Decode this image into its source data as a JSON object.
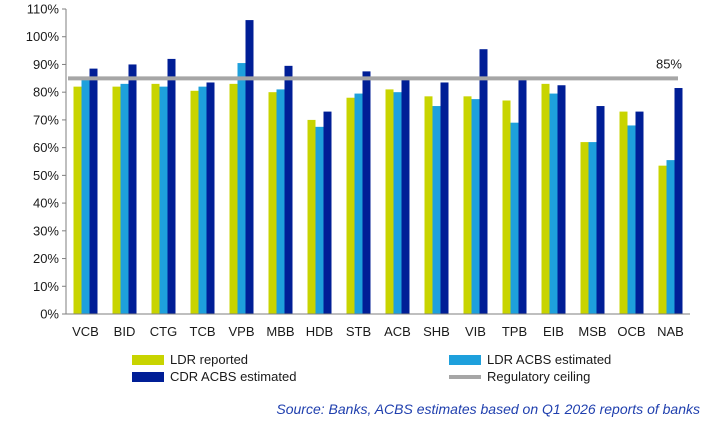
{
  "chart_data": {
    "type": "bar",
    "categories": [
      "VCB",
      "BID",
      "CTG",
      "TCB",
      "VPB",
      "MBB",
      "HDB",
      "STB",
      "ACB",
      "SHB",
      "VIB",
      "TPB",
      "EIB",
      "MSB",
      "OCB",
      "NAB"
    ],
    "series": [
      {
        "name": "LDR reported",
        "color": "#c8d400",
        "values": [
          82,
          82,
          83,
          80.5,
          83,
          80,
          70,
          78,
          81,
          78.5,
          78.5,
          77,
          83,
          62,
          73,
          53.5
        ]
      },
      {
        "name": "LDR ACBS estimated",
        "color": "#1ea0dc",
        "values": [
          84.5,
          83,
          82,
          82,
          90.5,
          81,
          67.5,
          79.5,
          80,
          75,
          77.5,
          69,
          79.5,
          62,
          68,
          55.5
        ]
      },
      {
        "name": "CDR ACBS estimated",
        "color": "#001e96",
        "values": [
          88.5,
          90,
          92,
          83.5,
          106,
          89.5,
          73,
          87.5,
          84.5,
          83.5,
          95.5,
          84.5,
          82.5,
          75,
          73,
          81.5
        ]
      }
    ],
    "reference_line": {
      "name": "Regulatory ceiling",
      "value": 85,
      "label": "85%",
      "color": "#a6a6a6"
    },
    "yticks": [
      "0%",
      "10%",
      "20%",
      "30%",
      "40%",
      "50%",
      "60%",
      "70%",
      "80%",
      "90%",
      "100%",
      "110%"
    ],
    "ylim": [
      0,
      110
    ],
    "legend_position": "bottom",
    "title": "",
    "xlabel": "",
    "ylabel": ""
  },
  "legend": {
    "ldr_reported": "LDR reported",
    "ldr_acbs": "LDR ACBS estimated",
    "cdr_acbs": "CDR ACBS estimated",
    "ceiling": "Regulatory ceiling"
  },
  "source": "Source: Banks, ACBS estimates based on Q1 2026 reports of banks"
}
